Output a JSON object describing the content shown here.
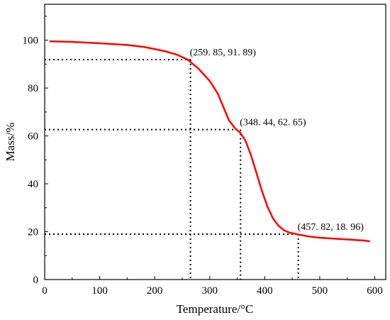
{
  "chart_data": {
    "type": "line",
    "xlabel": "Temperature/°C",
    "ylabel": "Mass/%",
    "xlim": [
      0,
      620
    ],
    "ylim": [
      0,
      115
    ],
    "x_ticks": [
      0,
      100,
      200,
      300,
      400,
      500,
      600
    ],
    "y_ticks": [
      0,
      20,
      40,
      60,
      80,
      100
    ],
    "grid": false,
    "series": [
      {
        "color": "#ff0000",
        "x": [
          10,
          50,
          100,
          150,
          180,
          200,
          220,
          240,
          259.85,
          280,
          300,
          315,
          325,
          335,
          345,
          348.44,
          355,
          365,
          375,
          385,
          395,
          405,
          415,
          425,
          435,
          445,
          457.82,
          480,
          500,
          520,
          540,
          560,
          580,
          590
        ],
        "y": [
          99.5,
          99.3,
          98.7,
          98.0,
          97.2,
          96.3,
          95.3,
          94.0,
          91.89,
          88.0,
          83.0,
          77.5,
          72.0,
          66.5,
          63.5,
          62.65,
          61.5,
          58.0,
          52.0,
          44.5,
          37.0,
          30.5,
          25.5,
          22.5,
          20.6,
          19.6,
          18.96,
          18.0,
          17.5,
          17.2,
          16.9,
          16.6,
          16.3,
          16.0
        ]
      }
    ],
    "annotations": [
      {
        "x": 259.85,
        "y": 91.89,
        "text": "(259. 85, 91. 89)",
        "guide_x": 265
      },
      {
        "x": 348.44,
        "y": 62.65,
        "text": "(348. 44, 62. 65)",
        "guide_x": 356
      },
      {
        "x": 457.82,
        "y": 18.96,
        "text": "(457. 82, 18. 96)",
        "guide_x": 461
      }
    ]
  }
}
